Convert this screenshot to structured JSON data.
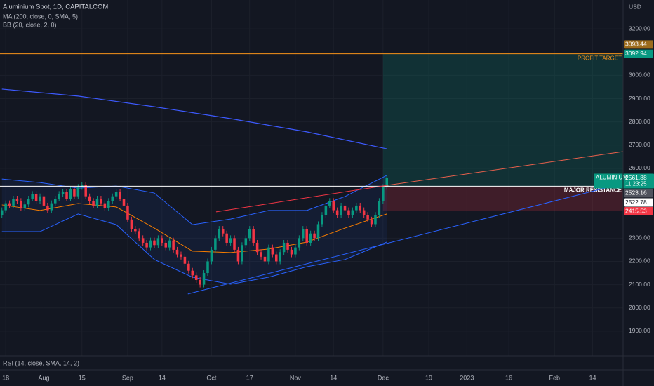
{
  "chart_data": {
    "type": "candlestick",
    "title": "Aluminium Spot, 1D, CAPITALCOM",
    "indicators_legend": [
      "MA (200, close, 0, SMA, 5)",
      "BB (20, close, 2, 0)"
    ],
    "currency": "USD",
    "rsi_legend": "RSI (14, close, SMA, 14, 2)",
    "up_color": "#089981",
    "down_color": "#f23645",
    "grid": true,
    "xlim": [
      -0.5,
      163
    ],
    "xticks": [
      {
        "value": 1,
        "label": "18"
      },
      {
        "value": 11,
        "label": "Aug"
      },
      {
        "value": 21,
        "label": "15"
      },
      {
        "value": 33,
        "label": "Sep"
      },
      {
        "value": 42,
        "label": "14"
      },
      {
        "value": 55,
        "label": "Oct"
      },
      {
        "value": 65,
        "label": "17"
      },
      {
        "value": 77,
        "label": "Nov"
      },
      {
        "value": 87,
        "label": "14"
      },
      {
        "value": 100,
        "label": "Dec"
      },
      {
        "value": 112,
        "label": "19"
      },
      {
        "value": 122,
        "label": "2023"
      },
      {
        "value": 133,
        "label": "16"
      },
      {
        "value": 145,
        "label": "Feb"
      },
      {
        "value": 155,
        "label": "14"
      }
    ],
    "ylim": [
      1794,
      3324
    ],
    "yticks": [
      {
        "value": 3200,
        "label": "3200.00"
      },
      {
        "value": 3000,
        "label": "3000.00"
      },
      {
        "value": 2900,
        "label": "2900.00"
      },
      {
        "value": 2800,
        "label": "2800.00"
      },
      {
        "value": 2700,
        "label": "2700.00"
      },
      {
        "value": 2600,
        "label": "2600.00"
      },
      {
        "value": 2300,
        "label": "2300.00"
      },
      {
        "value": 2200,
        "label": "2200.00"
      },
      {
        "value": 2100,
        "label": "2100.00"
      },
      {
        "value": 2000,
        "label": "2000.00"
      },
      {
        "value": 1900,
        "label": "1900.00"
      }
    ],
    "candles": [
      [
        2400,
        2432,
        2388,
        2420
      ],
      [
        2420,
        2462,
        2408,
        2450
      ],
      [
        2450,
        2462,
        2428,
        2440
      ],
      [
        2440,
        2482,
        2428,
        2470
      ],
      [
        2470,
        2482,
        2448,
        2460
      ],
      [
        2460,
        2472,
        2418,
        2430
      ],
      [
        2430,
        2457,
        2418,
        2445
      ],
      [
        2445,
        2482,
        2433,
        2470
      ],
      [
        2470,
        2502,
        2458,
        2490
      ],
      [
        2490,
        2502,
        2448,
        2460
      ],
      [
        2460,
        2492,
        2448,
        2480
      ],
      [
        2480,
        2492,
        2428,
        2440
      ],
      [
        2440,
        2452,
        2408,
        2420
      ],
      [
        2420,
        2462,
        2408,
        2450
      ],
      [
        2450,
        2482,
        2438,
        2470
      ],
      [
        2470,
        2502,
        2458,
        2490
      ],
      [
        2490,
        2512,
        2478,
        2500
      ],
      [
        2500,
        2512,
        2458,
        2470
      ],
      [
        2470,
        2522,
        2458,
        2510
      ],
      [
        2510,
        2522,
        2468,
        2480
      ],
      [
        2480,
        2532,
        2468,
        2520
      ],
      [
        2520,
        2542,
        2508,
        2530
      ],
      [
        2530,
        2542,
        2468,
        2480
      ],
      [
        2480,
        2492,
        2448,
        2460
      ],
      [
        2460,
        2472,
        2428,
        2440
      ],
      [
        2440,
        2482,
        2428,
        2470
      ],
      [
        2470,
        2482,
        2438,
        2450
      ],
      [
        2450,
        2462,
        2418,
        2430
      ],
      [
        2430,
        2472,
        2418,
        2460
      ],
      [
        2460,
        2492,
        2448,
        2480
      ],
      [
        2480,
        2512,
        2468,
        2500
      ],
      [
        2500,
        2512,
        2458,
        2470
      ],
      [
        2470,
        2482,
        2428,
        2440
      ],
      [
        2440,
        2452,
        2368,
        2380
      ],
      [
        2380,
        2392,
        2328,
        2340
      ],
      [
        2340,
        2352,
        2318,
        2330
      ],
      [
        2330,
        2342,
        2288,
        2300
      ],
      [
        2300,
        2312,
        2268,
        2280
      ],
      [
        2280,
        2292,
        2248,
        2260
      ],
      [
        2260,
        2302,
        2248,
        2290
      ],
      [
        2290,
        2302,
        2258,
        2270
      ],
      [
        2270,
        2312,
        2258,
        2300
      ],
      [
        2300,
        2312,
        2268,
        2280
      ],
      [
        2280,
        2292,
        2248,
        2260
      ],
      [
        2260,
        2302,
        2248,
        2290
      ],
      [
        2290,
        2302,
        2238,
        2250
      ],
      [
        2250,
        2262,
        2218,
        2230
      ],
      [
        2230,
        2242,
        2208,
        2220
      ],
      [
        2220,
        2232,
        2178,
        2190
      ],
      [
        2190,
        2202,
        2148,
        2160
      ],
      [
        2160,
        2172,
        2128,
        2140
      ],
      [
        2140,
        2152,
        2108,
        2120
      ],
      [
        2120,
        2132,
        2088,
        2100
      ],
      [
        2100,
        2162,
        2088,
        2150
      ],
      [
        2150,
        2212,
        2138,
        2200
      ],
      [
        2200,
        2262,
        2188,
        2250
      ],
      [
        2250,
        2312,
        2238,
        2300
      ],
      [
        2300,
        2352,
        2288,
        2340
      ],
      [
        2340,
        2352,
        2308,
        2320
      ],
      [
        2320,
        2332,
        2268,
        2280
      ],
      [
        2280,
        2312,
        2268,
        2300
      ],
      [
        2300,
        2312,
        2238,
        2250
      ],
      [
        2250,
        2262,
        2188,
        2200
      ],
      [
        2200,
        2282,
        2188,
        2270
      ],
      [
        2270,
        2312,
        2258,
        2300
      ],
      [
        2300,
        2352,
        2288,
        2340
      ],
      [
        2340,
        2352,
        2268,
        2280
      ],
      [
        2280,
        2292,
        2228,
        2240
      ],
      [
        2240,
        2252,
        2208,
        2220
      ],
      [
        2220,
        2232,
        2188,
        2200
      ],
      [
        2200,
        2272,
        2188,
        2260
      ],
      [
        2260,
        2272,
        2218,
        2230
      ],
      [
        2230,
        2242,
        2188,
        2200
      ],
      [
        2200,
        2252,
        2188,
        2240
      ],
      [
        2240,
        2292,
        2228,
        2280
      ],
      [
        2280,
        2292,
        2238,
        2250
      ],
      [
        2250,
        2262,
        2218,
        2230
      ],
      [
        2230,
        2272,
        2218,
        2260
      ],
      [
        2260,
        2312,
        2248,
        2300
      ],
      [
        2300,
        2352,
        2288,
        2340
      ],
      [
        2340,
        2352,
        2268,
        2280
      ],
      [
        2280,
        2332,
        2268,
        2320
      ],
      [
        2320,
        2332,
        2288,
        2300
      ],
      [
        2300,
        2372,
        2288,
        2360
      ],
      [
        2360,
        2412,
        2348,
        2400
      ],
      [
        2400,
        2452,
        2388,
        2440
      ],
      [
        2440,
        2472,
        2428,
        2460
      ],
      [
        2460,
        2472,
        2408,
        2420
      ],
      [
        2420,
        2432,
        2388,
        2400
      ],
      [
        2400,
        2452,
        2388,
        2440
      ],
      [
        2440,
        2452,
        2408,
        2420
      ],
      [
        2420,
        2432,
        2388,
        2400
      ],
      [
        2400,
        2432,
        2388,
        2420
      ],
      [
        2420,
        2452,
        2408,
        2440
      ],
      [
        2440,
        2452,
        2408,
        2420
      ],
      [
        2420,
        2432,
        2388,
        2400
      ],
      [
        2400,
        2412,
        2368,
        2380
      ],
      [
        2380,
        2392,
        2348,
        2360
      ],
      [
        2360,
        2412,
        2348,
        2400
      ],
      [
        2400,
        2472,
        2388,
        2460
      ],
      [
        2460,
        2532,
        2448,
        2520
      ],
      [
        2520,
        2572,
        2508,
        2560
      ]
    ],
    "ma200": {
      "color": "#3d5afe",
      "x": [
        0,
        20,
        40,
        60,
        80,
        101
      ],
      "values": [
        2941,
        2911,
        2865,
        2814,
        2757,
        2684
      ]
    },
    "bollinger": {
      "color": "#2962ff",
      "basis_color": "#f57c00",
      "fill": "rgba(41,98,255,0.08)",
      "x": [
        0,
        10,
        20,
        30,
        40,
        50,
        60,
        70,
        80,
        90,
        101
      ],
      "upper": [
        2554,
        2539,
        2515,
        2524,
        2494,
        2358,
        2382,
        2419,
        2419,
        2479,
        2570
      ],
      "basis": [
        2443,
        2419,
        2449,
        2434,
        2343,
        2244,
        2238,
        2253,
        2283,
        2343,
        2404
      ],
      "lower": [
        2328,
        2328,
        2404,
        2358,
        2208,
        2132,
        2102,
        2132,
        2177,
        2208,
        2283
      ]
    },
    "levels": [
      {
        "value": 3092.94,
        "color": "#f7931a",
        "label": "PROFIT TARGET"
      },
      {
        "value": 2523.16,
        "color": "#ffffff",
        "label": "MAJOR RESISTANCE"
      }
    ],
    "trendlines": [
      {
        "color": "#f23645",
        "x": [
          56.2,
          101
        ],
        "values": [
          2413,
          2527
        ]
      },
      {
        "color": "#e8604c",
        "x": [
          101,
          163
        ],
        "values": [
          2527,
          2672
        ]
      },
      {
        "color": "#2962ff",
        "x": [
          48.8,
          158.2
        ],
        "values": [
          2060,
          2515
        ]
      }
    ],
    "position": {
      "start_x": 100,
      "end_x": 163,
      "entry": 2523.16,
      "target": 3092.94,
      "stop": 2415.53,
      "profit_color": "rgba(8,153,129,0.2)",
      "loss_color": "rgba(242,54,69,0.2)"
    },
    "price_labels": [
      {
        "value": 3093.44,
        "color": "#9c6b1c"
      },
      {
        "value": 3092.94,
        "color": "#089981"
      },
      {
        "name": "ALUMINIUM",
        "value": 2561.88,
        "time": "11:23:25",
        "color": "#089981"
      },
      {
        "value": 2523.16,
        "color": "#50535e"
      },
      {
        "value": 2522.78,
        "color": "#ffffff"
      },
      {
        "value": 2415.53,
        "color": "#f23645"
      }
    ]
  }
}
